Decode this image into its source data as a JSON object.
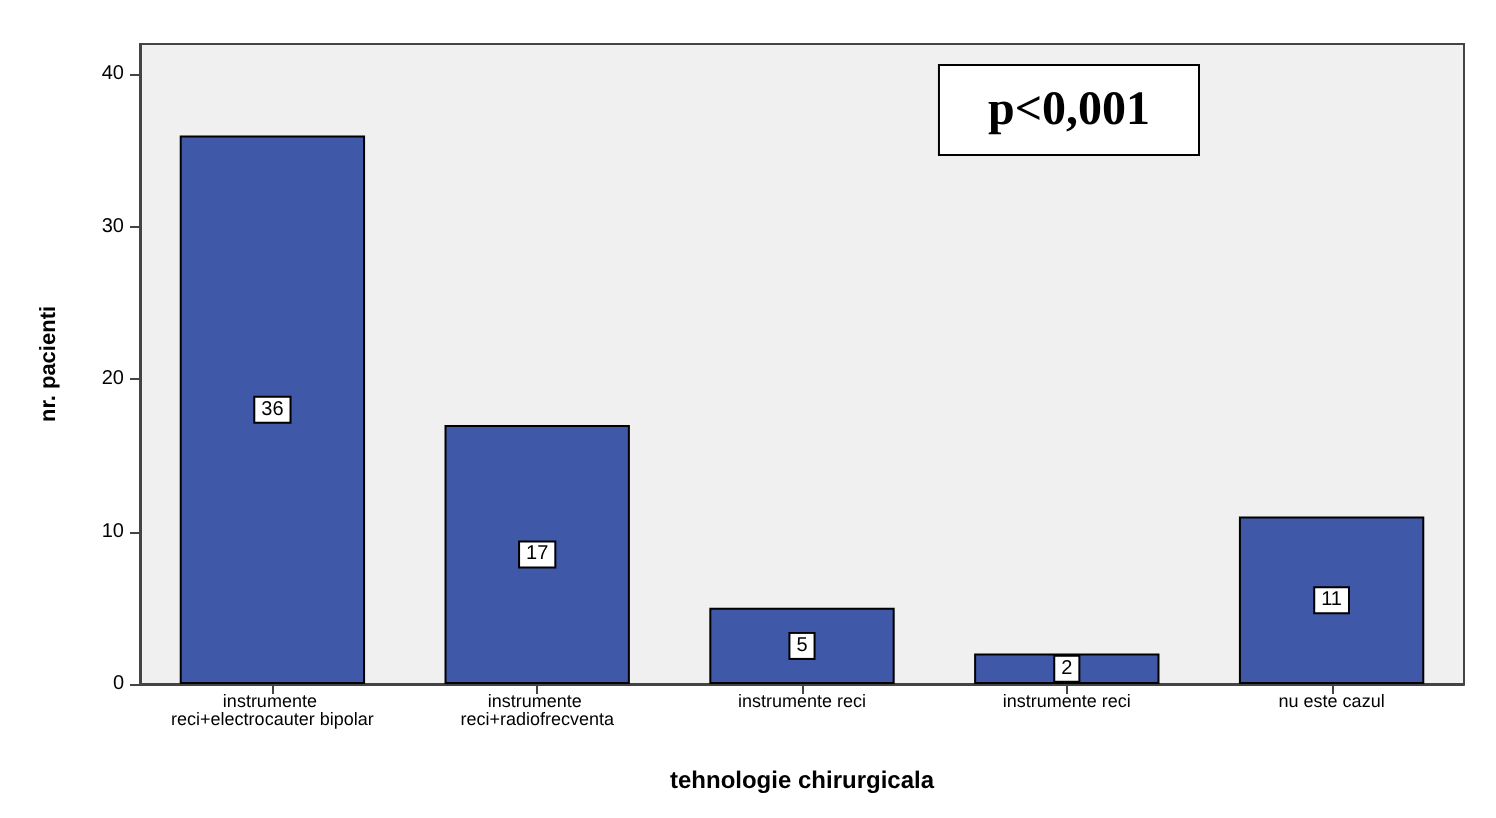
{
  "chart_data": {
    "type": "bar",
    "xlabel": "tehnologie chirurgicala",
    "ylabel": "nr. pacienti",
    "categories": [
      "instrumente reci+electrocauter bipolar",
      "instrumente reci+radiofrecventa",
      "instrumente reci",
      "instrumente reci",
      "nu este cazul"
    ],
    "values": [
      36,
      17,
      5,
      2,
      11
    ],
    "color": "#3f58a8",
    "ylim": [
      0,
      42
    ],
    "yticks": [
      0,
      10,
      20,
      30,
      40
    ],
    "grid": false,
    "data_labels": true,
    "annotations": [
      "p<0,001"
    ]
  }
}
